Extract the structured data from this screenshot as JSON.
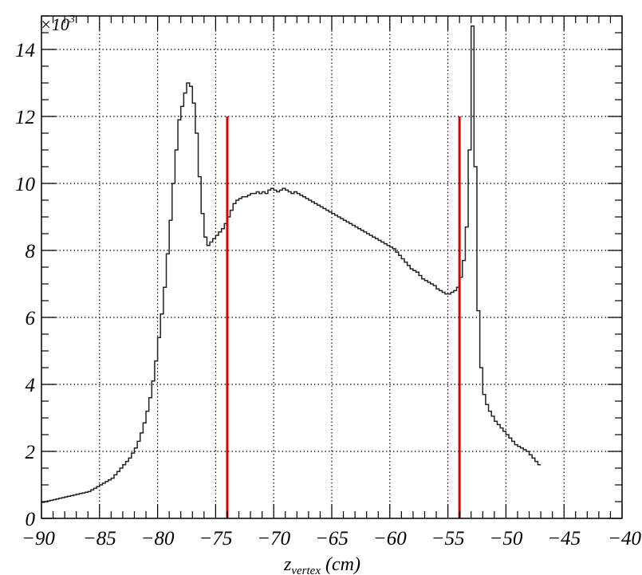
{
  "chart_data": {
    "type": "histogram",
    "title": "",
    "xlabel": {
      "main": "z",
      "sub": "vertex",
      "unit": " (cm)"
    },
    "ylabel": "",
    "y_multiplier": {
      "base": "×10",
      "exp": "3"
    },
    "xlim": [
      -90,
      -40
    ],
    "ylim": [
      0,
      15
    ],
    "x_ticks": [
      -90,
      -85,
      -80,
      -75,
      -70,
      -65,
      -60,
      -55,
      -50,
      -45,
      -40
    ],
    "y_ticks": [
      0,
      2,
      4,
      6,
      8,
      10,
      12,
      14
    ],
    "grid": true,
    "bin_width": 0.25,
    "bin_start": -90,
    "series": [
      {
        "values": [
          0.48,
          0.5,
          0.52,
          0.54,
          0.56,
          0.58,
          0.6,
          0.62,
          0.64,
          0.66,
          0.68,
          0.7,
          0.72,
          0.74,
          0.76,
          0.78,
          0.8,
          0.85,
          0.9,
          0.95,
          1.0,
          1.05,
          1.1,
          1.15,
          1.2,
          1.3,
          1.4,
          1.5,
          1.6,
          1.7,
          1.8,
          1.95,
          2.1,
          2.3,
          2.55,
          2.85,
          3.2,
          3.6,
          4.1,
          4.7,
          5.4,
          6.1,
          6.9,
          7.9,
          8.9,
          10.0,
          11.0,
          11.9,
          12.3,
          12.7,
          13.0,
          12.9,
          12.4,
          11.5,
          10.2,
          9.1,
          8.4,
          8.15,
          8.25,
          8.35,
          8.45,
          8.55,
          8.65,
          8.8,
          9.0,
          9.2,
          9.4,
          9.5,
          9.55,
          9.6,
          9.6,
          9.65,
          9.7,
          9.7,
          9.75,
          9.7,
          9.75,
          9.7,
          9.8,
          9.85,
          9.8,
          9.75,
          9.8,
          9.85,
          9.8,
          9.75,
          9.7,
          9.75,
          9.7,
          9.65,
          9.6,
          9.55,
          9.5,
          9.45,
          9.4,
          9.35,
          9.3,
          9.25,
          9.2,
          9.15,
          9.1,
          9.05,
          9.0,
          8.95,
          8.9,
          8.85,
          8.8,
          8.75,
          8.7,
          8.65,
          8.6,
          8.55,
          8.5,
          8.45,
          8.4,
          8.35,
          8.3,
          8.25,
          8.2,
          8.15,
          8.1,
          8.05,
          7.95,
          7.85,
          7.75,
          7.65,
          7.55,
          7.45,
          7.4,
          7.35,
          7.25,
          7.15,
          7.1,
          7.05,
          7.0,
          6.95,
          6.85,
          6.8,
          6.75,
          6.7,
          6.7,
          6.75,
          6.8,
          6.9,
          7.2,
          7.7,
          8.7,
          11.0,
          14.7,
          10.5,
          6.2,
          4.5,
          3.7,
          3.4,
          3.2,
          3.05,
          2.9,
          2.8,
          2.7,
          2.6,
          2.5,
          2.4,
          2.3,
          2.2,
          2.15,
          2.1,
          2.05,
          2.0,
          1.9,
          1.8,
          1.7,
          1.6
        ]
      }
    ],
    "cut_lines": [
      {
        "x": -74,
        "y_top": 12,
        "color": "#e00000"
      },
      {
        "x": -54,
        "y_top": 12,
        "color": "#e00000"
      }
    ],
    "colors": {
      "histogram": "#222222",
      "grid": "#000000",
      "cuts": "#e00000"
    }
  }
}
